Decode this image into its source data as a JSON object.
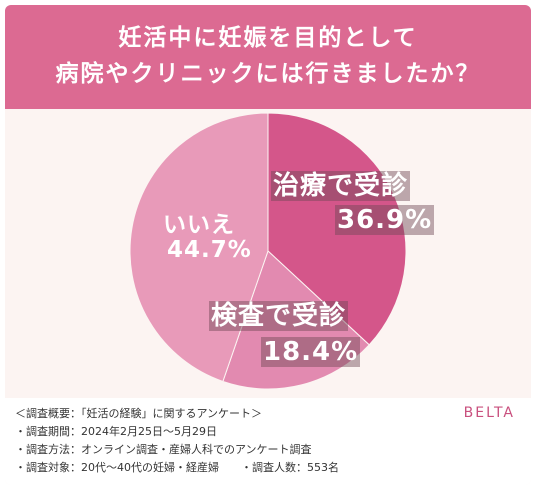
{
  "header": {
    "title_line1": "妊活中に妊娠を目的として",
    "title_line2": "病院やクリニックには行きましたか？"
  },
  "chart_data": {
    "type": "pie",
    "slices": [
      {
        "label": "治療で受診",
        "value": 36.9,
        "display": "36.9%",
        "color": "#d4568a"
      },
      {
        "label": "検査で受診",
        "value": 18.4,
        "display": "18.4%",
        "color": "#e28ab0"
      },
      {
        "label": "いいえ",
        "value": 44.7,
        "display": "44.7%",
        "color": "#e89ab9"
      }
    ],
    "start": "12 o'clock, clockwise"
  },
  "notes": {
    "overview": "＜調査概要：「妊活の経験」に関するアンケート＞",
    "period": "・調査期間：2024年2月25日〜5月29日",
    "method": "・調査方法：オンライン調査・産婦人科でのアンケート調査",
    "target": "・調査対象：20代〜40代の妊婦・経産婦　　・調査人数：553名"
  },
  "brand": "BELTA"
}
